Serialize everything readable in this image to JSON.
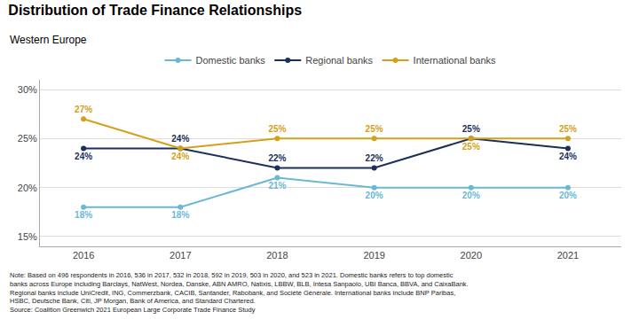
{
  "chart_data": {
    "type": "line",
    "title": "Distribution of Trade Finance Relationships",
    "subtitle": "Western Europe",
    "x": [
      2016,
      2017,
      2018,
      2019,
      2020,
      2021
    ],
    "series": [
      {
        "name": "Domestic banks",
        "color": "#6bb8d4",
        "values": [
          18,
          18,
          21,
          20,
          20,
          20
        ],
        "value_labels": [
          "18%",
          "18%",
          "21%",
          "20%",
          "20%",
          "20%"
        ]
      },
      {
        "name": "Regional banks",
        "color": "#1a2f5a",
        "values": [
          24,
          24,
          22,
          22,
          25,
          24
        ],
        "value_labels": [
          "24%",
          "24%",
          "22%",
          "22%",
          "25%",
          "24%"
        ]
      },
      {
        "name": "International banks",
        "color": "#d4a017",
        "values": [
          27,
          24,
          25,
          25,
          25,
          25
        ],
        "value_labels": [
          "27%",
          "24%",
          "25%",
          "25%",
          "25%",
          "25%"
        ]
      }
    ],
    "xlim": [
      2015.55,
      2021.55
    ],
    "xticks": [
      2016,
      2017,
      2018,
      2019,
      2020,
      2021
    ],
    "ylim": [
      14,
      31
    ],
    "yticks": [
      {
        "value": 15,
        "label": "15%"
      },
      {
        "value": 20,
        "label": "20%"
      },
      {
        "value": 25,
        "label": "25%"
      },
      {
        "value": 30,
        "label": "30%"
      }
    ],
    "grid": "y",
    "legend": "top",
    "marker": "circle",
    "data_labels": true,
    "annotations": [
      "Note: Based on 496 respondents in 2016, 536 in 2017, 532 in 2018, 592 in 2019, 503 in 2020, and 523 in 2021. Domestic banks refers to top domestic",
      "banks across Europe including Barclays, NatWest, Nordea, Danske, ABN AMRO, Natixis, LBBW, BLB, Intesa Sanpaolo, UBI Banca, BBVA, and CaixaBank.",
      "Regional banks include UniCredit, ING, Commerzbank, CACIB, Santander, Rabobank, and Société Générale. International banks include BNP Paribas,",
      "HSBC, Deutsche Bank, Citi, JP Morgan, Bank of America, and Standard Chartered.",
      "Source: Coalition Greenwich 2021 European Large Corporate Trade Finance Study"
    ]
  }
}
